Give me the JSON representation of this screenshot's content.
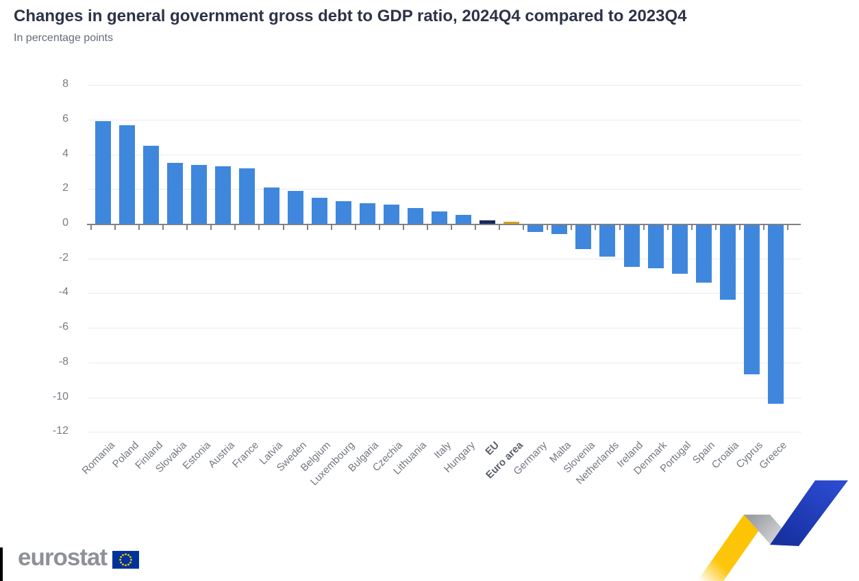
{
  "title": "Changes in general government gross debt to GDP ratio, 2024Q4 compared to 2023Q4",
  "subtitle": "In percentage points",
  "chart_data": {
    "type": "bar",
    "title": "Changes in general government gross debt to GDP ratio, 2024Q4 compared to 2023Q4",
    "xlabel": "",
    "ylabel": "percentage points",
    "ylim": [
      -12,
      8
    ],
    "ytick_step": 2,
    "grid": true,
    "legend_position": "none",
    "categories": [
      "Romania",
      "Poland",
      "Finland",
      "Slovakia",
      "Estonia",
      "Austria",
      "France",
      "Latvia",
      "Sweden",
      "Belgium",
      "Luxembourg",
      "Bulgaria",
      "Czechia",
      "Lithuania",
      "Italy",
      "Hungary",
      "EU",
      "Euro area",
      "Germany",
      "Malta",
      "Slovenia",
      "Netherlands",
      "Ireland",
      "Denmark",
      "Portugal",
      "Spain",
      "Croatia",
      "Cyprus",
      "Greece"
    ],
    "values": [
      5.9,
      5.7,
      4.5,
      3.5,
      3.4,
      3.3,
      3.2,
      2.1,
      1.9,
      1.5,
      1.3,
      1.2,
      1.1,
      0.9,
      0.7,
      0.5,
      0.2,
      0.1,
      -0.4,
      -0.5,
      -1.4,
      -1.8,
      -2.4,
      -2.5,
      -2.8,
      -3.3,
      -4.3,
      -8.6,
      -10.3
    ],
    "emphasized_categories": [
      "EU",
      "Euro area"
    ],
    "point_colors": [
      "#3F87DD",
      "#3F87DD",
      "#3F87DD",
      "#3F87DD",
      "#3F87DD",
      "#3F87DD",
      "#3F87DD",
      "#3F87DD",
      "#3F87DD",
      "#3F87DD",
      "#3F87DD",
      "#3F87DD",
      "#3F87DD",
      "#3F87DD",
      "#3F87DD",
      "#3F87DD",
      "#16295E",
      "#D1A41E",
      "#3F87DD",
      "#3F87DD",
      "#3F87DD",
      "#3F87DD",
      "#3F87DD",
      "#3F87DD",
      "#3F87DD",
      "#3F87DD",
      "#3F87DD",
      "#3F87DD",
      "#3F87DD"
    ]
  },
  "footer": {
    "logo_text": "eurostat",
    "flag_icon": "eu-flag-icon",
    "swoosh_icon": "eurostat-swoosh-icon"
  },
  "colors": {
    "bar_default": "#3F87DD",
    "bar_eu": "#16295E",
    "bar_euro_area": "#D1A41E",
    "gridline": "#E7EAF3",
    "axis": "#7F8186",
    "title_text": "#2B3347",
    "flag_blue": "#003399",
    "flag_stars": "#FFCC00",
    "swoosh_yellow": "#FDC300",
    "swoosh_gray": "#A7A9AD",
    "swoosh_blue": "#2443C4"
  }
}
